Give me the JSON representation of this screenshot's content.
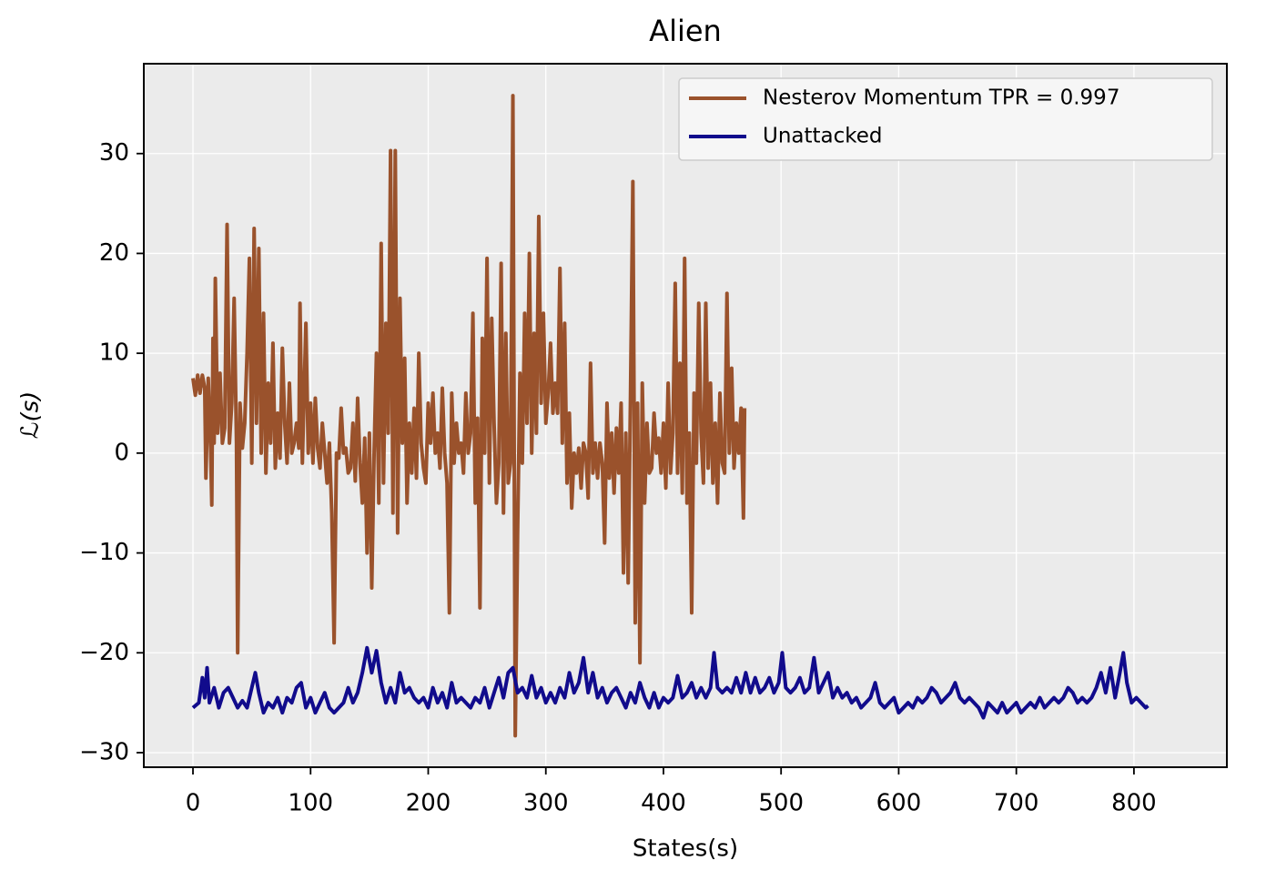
{
  "chart_data": {
    "type": "line",
    "title": "Alien",
    "xlabel": "States(s)",
    "ylabel": "ℒ(s)",
    "xlim": [
      -41.8,
      879
    ],
    "ylim": [
      -31.46,
      39.0
    ],
    "xticks": [
      0,
      100,
      200,
      300,
      400,
      500,
      600,
      700,
      800
    ],
    "yticks": [
      {
        "value": -30,
        "label": "−30"
      },
      {
        "value": -20,
        "label": "−20"
      },
      {
        "value": -10,
        "label": "−10"
      },
      0,
      10,
      20,
      30
    ],
    "grid": true,
    "legend": "upper right",
    "series": [
      {
        "name": "Nesterov Momentum TPR = 0.997",
        "color": "#9a522c",
        "x": [
          0,
          2,
          4,
          6,
          8,
          10,
          11,
          13,
          15,
          16,
          17,
          18,
          19,
          21,
          23,
          25,
          27,
          29,
          31,
          33,
          35,
          37,
          38,
          40,
          42,
          44,
          46,
          48,
          50,
          52,
          54,
          56,
          58,
          60,
          62,
          64,
          66,
          68,
          70,
          72,
          74,
          76,
          78,
          80,
          82,
          84,
          86,
          88,
          90,
          91,
          93,
          96,
          98,
          100,
          102,
          104,
          106,
          108,
          110,
          112,
          114,
          116,
          118,
          120,
          122,
          124,
          126,
          128,
          130,
          132,
          134,
          136,
          138,
          140,
          142,
          144,
          146,
          148,
          150,
          152,
          154,
          156,
          158,
          160,
          162,
          164,
          166,
          168,
          170,
          172,
          174,
          176,
          178,
          180,
          182,
          184,
          186,
          188,
          190,
          192,
          194,
          196,
          198,
          200,
          202,
          204,
          206,
          208,
          210,
          212,
          214,
          216,
          218,
          220,
          222,
          224,
          226,
          228,
          230,
          232,
          234,
          236,
          238,
          240,
          242,
          244,
          246,
          248,
          250,
          252,
          254,
          256,
          258,
          260,
          262,
          264,
          266,
          268,
          270,
          272,
          274,
          276,
          278,
          280,
          282,
          284,
          286,
          288,
          290,
          292,
          294,
          296,
          298,
          300,
          302,
          304,
          306,
          308,
          310,
          312,
          314,
          316,
          318,
          320,
          322,
          324,
          326,
          328,
          330,
          332,
          334,
          336,
          338,
          340,
          342,
          344,
          346,
          348,
          350,
          352,
          354,
          356,
          358,
          360,
          362,
          364,
          366,
          368,
          370,
          372,
          374,
          376,
          378,
          380,
          382,
          384,
          386,
          388,
          390,
          392,
          394,
          396,
          398,
          400,
          402,
          404,
          406,
          408,
          410,
          412,
          414,
          416,
          418,
          420,
          422,
          424,
          426,
          428,
          430,
          432,
          434,
          436,
          438,
          440,
          442,
          444,
          446,
          448,
          450,
          452,
          454,
          456,
          458,
          460,
          462,
          464,
          466,
          468,
          469
        ],
        "values": [
          7.5,
          5.8,
          7.8,
          6,
          7.8,
          6.5,
          -2.5,
          7.5,
          0.5,
          -5.2,
          11.5,
          1,
          17.5,
          2,
          8,
          1,
          2.5,
          22.9,
          1,
          5,
          15.5,
          1,
          -20,
          5,
          0.5,
          3,
          10,
          19.5,
          -1,
          22.5,
          3,
          20.5,
          0,
          14,
          -2,
          7,
          1,
          11,
          -1.5,
          4,
          -0.5,
          10.5,
          3,
          -1,
          7,
          0,
          1,
          3,
          0.5,
          15,
          -1,
          13,
          0,
          5,
          -1,
          5.5,
          0.5,
          -1.5,
          3,
          0,
          -3,
          1,
          -6,
          -19,
          0,
          -0.5,
          4.5,
          0,
          0.5,
          -2,
          -1.5,
          3,
          -2.8,
          5.5,
          -1,
          -5,
          1.5,
          -10,
          2,
          -13.5,
          0,
          10,
          -5,
          21,
          -3,
          13,
          2,
          30.3,
          -6,
          30.3,
          -8,
          15.5,
          1,
          9.5,
          -5,
          3,
          -2,
          4.5,
          -2.5,
          10,
          1,
          -1.5,
          -3,
          5,
          1,
          6,
          0,
          2,
          -1.5,
          6.5,
          0,
          -3,
          -16,
          6,
          -1,
          3,
          0,
          1,
          -2,
          6,
          0,
          2,
          14,
          -5,
          3.5,
          -15.5,
          11.5,
          0,
          19.5,
          -3,
          13.5,
          3,
          -5,
          -1,
          19,
          -6,
          12,
          -3,
          -1,
          35.8,
          -28.3,
          -8,
          8,
          -1,
          14,
          3,
          20,
          0,
          12,
          2,
          23.7,
          5,
          14,
          3,
          6,
          11,
          4,
          7,
          4,
          18.5,
          1,
          13,
          -3,
          4,
          -5.5,
          0,
          -2,
          0.5,
          -3.5,
          1,
          0,
          -4.5,
          9,
          -2,
          1,
          -2.5,
          1,
          -1,
          -9,
          5,
          -2.5,
          2,
          -4,
          2.5,
          -2,
          5,
          -12,
          2,
          -13,
          6,
          27.2,
          -17,
          5,
          -21,
          7,
          -5,
          3,
          -2,
          -1.5,
          4,
          0,
          1.5,
          -2,
          3,
          -3.5,
          7,
          -2,
          2,
          17,
          -2,
          9,
          -4,
          19.5,
          -5,
          2,
          -16,
          6,
          -1,
          15,
          2,
          -3,
          15,
          -1.5,
          7,
          -3,
          3,
          -5,
          6,
          -1,
          -2,
          16,
          0,
          8.5,
          -1.5,
          3,
          0,
          4.5,
          -6.5,
          4.5
        ]
      },
      {
        "name": "Unattacked",
        "color": "#110b8c",
        "x": [
          0,
          5,
          8,
          10,
          12,
          14,
          18,
          22,
          26,
          30,
          34,
          38,
          42,
          46,
          50,
          53,
          56,
          60,
          64,
          68,
          72,
          76,
          80,
          84,
          88,
          92,
          96,
          100,
          104,
          108,
          112,
          116,
          120,
          124,
          128,
          132,
          136,
          140,
          144,
          148,
          152,
          156,
          160,
          164,
          168,
          172,
          176,
          180,
          184,
          188,
          192,
          196,
          200,
          204,
          208,
          212,
          216,
          220,
          224,
          228,
          232,
          236,
          240,
          244,
          248,
          252,
          256,
          260,
          264,
          268,
          272,
          276,
          280,
          284,
          288,
          292,
          296,
          300,
          304,
          308,
          312,
          316,
          320,
          324,
          328,
          332,
          336,
          340,
          344,
          348,
          352,
          356,
          360,
          364,
          368,
          372,
          376,
          380,
          384,
          388,
          392,
          396,
          400,
          404,
          408,
          412,
          416,
          420,
          424,
          428,
          432,
          436,
          440,
          443,
          446,
          450,
          454,
          458,
          462,
          466,
          470,
          474,
          478,
          482,
          486,
          490,
          494,
          498,
          501,
          504,
          508,
          512,
          516,
          520,
          524,
          528,
          532,
          536,
          540,
          544,
          548,
          552,
          556,
          560,
          564,
          568,
          572,
          576,
          580,
          584,
          588,
          592,
          596,
          600,
          604,
          608,
          612,
          616,
          620,
          624,
          628,
          632,
          636,
          640,
          644,
          648,
          652,
          656,
          660,
          664,
          668,
          672,
          676,
          680,
          684,
          688,
          692,
          696,
          700,
          704,
          708,
          712,
          716,
          720,
          724,
          728,
          732,
          736,
          740,
          744,
          748,
          752,
          756,
          760,
          764,
          768,
          772,
          776,
          780,
          784,
          788,
          791,
          794,
          798,
          802,
          806,
          810,
          812
        ],
        "values": [
          -25.5,
          -25,
          -22.5,
          -24.5,
          -21.5,
          -25,
          -23.5,
          -25.5,
          -24,
          -23.5,
          -24.5,
          -25.5,
          -24.8,
          -25.5,
          -23.5,
          -22,
          -24,
          -26,
          -25,
          -25.5,
          -24.5,
          -26,
          -24.5,
          -25,
          -23.5,
          -23,
          -25.5,
          -24.5,
          -26,
          -25,
          -24,
          -25.5,
          -26,
          -25.5,
          -25,
          -23.5,
          -25,
          -24,
          -22,
          -19.5,
          -22,
          -19.8,
          -23,
          -25,
          -23.5,
          -25,
          -22,
          -24,
          -23.5,
          -24.5,
          -25,
          -24.5,
          -25.5,
          -23.5,
          -25,
          -24,
          -25.5,
          -23,
          -25,
          -24.5,
          -25,
          -25.5,
          -24.5,
          -25,
          -23.5,
          -25.5,
          -24,
          -22.5,
          -24.5,
          -22,
          -21.5,
          -24,
          -23.5,
          -24.5,
          -22.3,
          -24.5,
          -23.5,
          -25,
          -24,
          -25,
          -23.5,
          -24.5,
          -22,
          -24,
          -23,
          -20.5,
          -24,
          -22,
          -24.5,
          -23.5,
          -25,
          -24,
          -23.5,
          -24.5,
          -25.5,
          -24,
          -25,
          -23,
          -24.5,
          -25.5,
          -24,
          -25.5,
          -24.5,
          -25,
          -24.5,
          -22.3,
          -24.5,
          -24,
          -23,
          -24.5,
          -23.5,
          -24.5,
          -23.5,
          -20,
          -23.5,
          -24,
          -23.5,
          -24,
          -22.5,
          -24,
          -22,
          -24,
          -22.5,
          -24,
          -23.5,
          -22.5,
          -24,
          -23,
          -20,
          -23.5,
          -24,
          -23.5,
          -22.5,
          -24,
          -23.5,
          -20.5,
          -24,
          -23,
          -22,
          -24.5,
          -23.5,
          -24.5,
          -24,
          -25,
          -24.5,
          -25.5,
          -25,
          -24.5,
          -23,
          -25,
          -25.5,
          -25,
          -24.5,
          -26,
          -25.5,
          -25,
          -25.5,
          -24.5,
          -25,
          -24.5,
          -23.5,
          -24,
          -25,
          -24.5,
          -24,
          -23,
          -24.5,
          -25,
          -24.5,
          -25,
          -25.5,
          -26.5,
          -25,
          -25.5,
          -26,
          -25,
          -26,
          -25.5,
          -25,
          -26,
          -25.5,
          -25,
          -25.5,
          -24.5,
          -25.5,
          -25,
          -24.5,
          -25,
          -24.5,
          -23.5,
          -24,
          -25,
          -24.5,
          -25,
          -24.5,
          -23.5,
          -22,
          -24,
          -21.5,
          -24.5,
          -22,
          -20,
          -23,
          -25,
          -24.5,
          -25,
          -25.5,
          -25.3
        ]
      }
    ]
  }
}
